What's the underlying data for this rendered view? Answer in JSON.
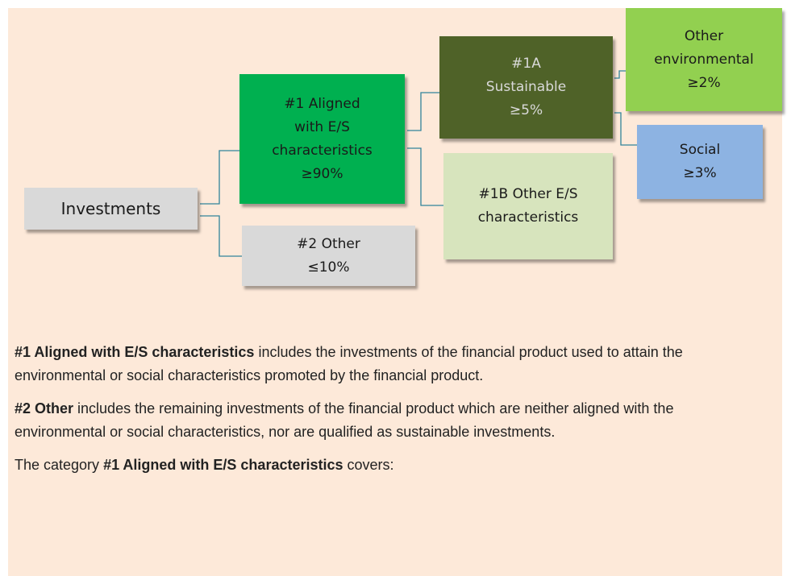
{
  "nodes": [
    {
      "lines": [
        "Investments"
      ],
      "color": "#d9d9d9",
      "text_color": "#1a1a1a"
    },
    {
      "lines": [
        "#1 Aligned",
        "with E/S",
        "characteristics",
        "≥90%"
      ],
      "color": "#00b050",
      "text_color": "#1a1a1a"
    },
    {
      "lines": [
        "#2 Other",
        "≤10%"
      ],
      "color": "#d9d9d9",
      "text_color": "#1a1a1a"
    },
    {
      "lines": [
        "#1A",
        "Sustainable",
        "≥5%"
      ],
      "color": "#4f6228",
      "text_color": "#d9d9d9"
    },
    {
      "lines": [
        "#1B Other E/S",
        "characteristics"
      ],
      "color": "#d7e4bd",
      "text_color": "#1a1a1a"
    },
    {
      "lines": [
        "Other",
        "environmental",
        "≥2%"
      ],
      "color": "#92d050",
      "text_color": "#1a1a1a"
    },
    {
      "lines": [
        "Social",
        "≥3%"
      ],
      "color": "#8db3e2",
      "text_color": "#1a1a1a"
    }
  ],
  "paragraphs": [
    [
      {
        "text": "#1 Aligned with E/S characteristics",
        "bold": true
      },
      {
        "text": " includes the investments of the financial product used to attain the environmental or social characteristics promoted by the financial product.",
        "bold": false
      }
    ],
    [
      {
        "text": "#2 Other",
        "bold": true
      },
      {
        "text": " includes the remaining investments of the financial product which are neither aligned with the environmental or social characteristics, nor are qualified as sustainable investments.",
        "bold": false
      }
    ],
    [
      {
        "text": "The category ",
        "bold": false
      },
      {
        "text": "#1 Aligned with E/S characteristics",
        "bold": true
      },
      {
        "text": " covers:",
        "bold": false
      }
    ]
  ]
}
